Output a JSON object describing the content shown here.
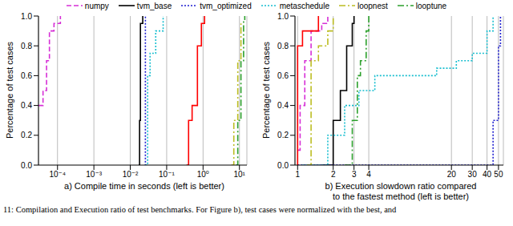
{
  "chart_data": [
    {
      "type": "line",
      "title": "a) Compile time in seconds (left is better)",
      "ylabel": "Percentage of test cases",
      "log": "x",
      "grid": true,
      "legend": "top",
      "xlim": [
        3e-05,
        16
      ],
      "xticks": [
        {
          "value": 0.0001,
          "label": "10⁻⁴"
        },
        {
          "value": 0.001,
          "label": "10⁻³"
        },
        {
          "value": 0.01,
          "label": "10⁻²"
        },
        {
          "value": 0.1,
          "label": "10⁻¹"
        },
        {
          "value": 1,
          "label": "10⁰"
        },
        {
          "value": 10,
          "label": "10¹"
        }
      ],
      "ylim": [
        0,
        1
      ],
      "yticks": [
        {
          "value": 0,
          "label": "0.0"
        },
        {
          "value": 0.2,
          "label": "0.2"
        },
        {
          "value": 0.4,
          "label": "0.4"
        },
        {
          "value": 0.6,
          "label": "0.6"
        },
        {
          "value": 0.8,
          "label": "0.8"
        },
        {
          "value": 1,
          "label": "1.0"
        }
      ],
      "series": [
        {
          "name": "numpy",
          "color": "#d62fd6",
          "line_style": "dashed",
          "x": [
            3e-05,
            4e-05,
            5e-05,
            6e-05,
            8e-05,
            0.00012
          ],
          "values": [
            0.4,
            0.5,
            0.7,
            0.9,
            0.95,
            1.0
          ]
        },
        {
          "name": "tvm_base",
          "color": "#000000",
          "line_style": "solid",
          "x": [
            0.017,
            0.018,
            0.019,
            0.022
          ],
          "values": [
            0,
            0.3,
            0.95,
            1.0
          ]
        },
        {
          "name": "tvm_optimized",
          "color": "#1f1fd0",
          "line_style": "dotted",
          "x": [
            0.025,
            0.026
          ],
          "values": [
            0,
            1.0
          ]
        },
        {
          "name": "metaschedule",
          "color": "#17becf",
          "line_style": "dotted",
          "x": [
            0.026,
            0.03,
            0.035,
            0.05,
            0.08
          ],
          "values": [
            0,
            0.6,
            0.75,
            0.9,
            1.0
          ]
        },
        {
          "color": "#ff0000",
          "line_style": "solid",
          "x": [
            0.35,
            0.4,
            0.5,
            0.7,
            0.9,
            1.1
          ],
          "values": [
            0,
            0.3,
            0.4,
            0.8,
            0.95,
            1.0
          ]
        },
        {
          "name": "loopnest",
          "color": "#bcbd22",
          "line_style": "dashdot",
          "x": [
            6,
            7,
            9,
            11
          ],
          "values": [
            0,
            0.3,
            0.7,
            0.95
          ]
        },
        {
          "name": "looptune",
          "color": "#2ca02c",
          "line_style": "dashdot",
          "x": [
            8,
            9,
            11,
            13,
            14
          ],
          "values": [
            0,
            0.3,
            0.7,
            0.97,
            1.0
          ]
        }
      ]
    },
    {
      "type": "line",
      "title": "b) Execution slowdown ratio compared\nto the fastest method (left is better)",
      "ylabel": "Percentage of test cases",
      "log": "x",
      "grid": true,
      "xlim": [
        0.95,
        55
      ],
      "xticks": [
        1,
        2,
        3,
        4,
        20,
        30,
        40,
        50
      ],
      "ylim": [
        0,
        1
      ],
      "yticks": [
        {
          "value": 0,
          "label": "0.0"
        },
        {
          "value": 0.2,
          "label": "0.2"
        },
        {
          "value": 0.4,
          "label": "0.4"
        },
        {
          "value": 0.6,
          "label": "0.6"
        },
        {
          "value": 0.8,
          "label": "0.8"
        },
        {
          "value": 1,
          "label": "1.0"
        }
      ],
      "series": [
        {
          "name": "numpy",
          "color": "#d62fd6",
          "line_style": "dashed",
          "x": [
            1,
            1.05,
            1.15,
            1.3,
            1.6,
            1.8
          ],
          "values": [
            0.1,
            0.4,
            0.7,
            0.9,
            0.95,
            1.0
          ]
        },
        {
          "name": "tvm_base",
          "color": "#000000",
          "line_style": "solid",
          "x": [
            1.6,
            2,
            2.3,
            2.6,
            2.9,
            3
          ],
          "values": [
            0,
            0.3,
            0.5,
            0.8,
            0.95,
            1.0
          ]
        },
        {
          "name": "tvm_optimized",
          "color": "#1f1fd0",
          "line_style": "dotted",
          "x": [
            1,
            40,
            45,
            50,
            52
          ],
          "values": [
            0,
            0,
            0.3,
            0.8,
            1.0
          ]
        },
        {
          "name": "metaschedule",
          "color": "#17becf",
          "line_style": "dotted",
          "x": [
            1.1,
            1.8,
            2.5,
            3.3,
            4.5,
            15,
            22,
            30,
            40,
            45
          ],
          "values": [
            0,
            0.2,
            0.4,
            0.5,
            0.6,
            0.65,
            0.7,
            0.75,
            0.9,
            1.0
          ]
        },
        {
          "color": "#ff0000",
          "line_style": "solid",
          "x": [
            1,
            1.0001,
            1.1,
            1.5
          ],
          "values": [
            0,
            0.8,
            0.9,
            1.0
          ]
        },
        {
          "name": "loopnest",
          "color": "#bcbd22",
          "line_style": "dashdot",
          "x": [
            1.2,
            1.3,
            1.5,
            1.8,
            2
          ],
          "values": [
            0,
            0.7,
            0.8,
            0.9,
            1.0
          ]
        },
        {
          "name": "looptune",
          "color": "#2ca02c",
          "line_style": "dashdot",
          "x": [
            2.5,
            2.9,
            3.2,
            3.4,
            3.8,
            4
          ],
          "values": [
            0,
            0.3,
            0.6,
            0.7,
            0.9,
            1.0
          ]
        }
      ]
    }
  ],
  "caption": "11: Compilation and Execution ratio of test benchmarks. For Figure b), test cases were normalized with the best, and"
}
